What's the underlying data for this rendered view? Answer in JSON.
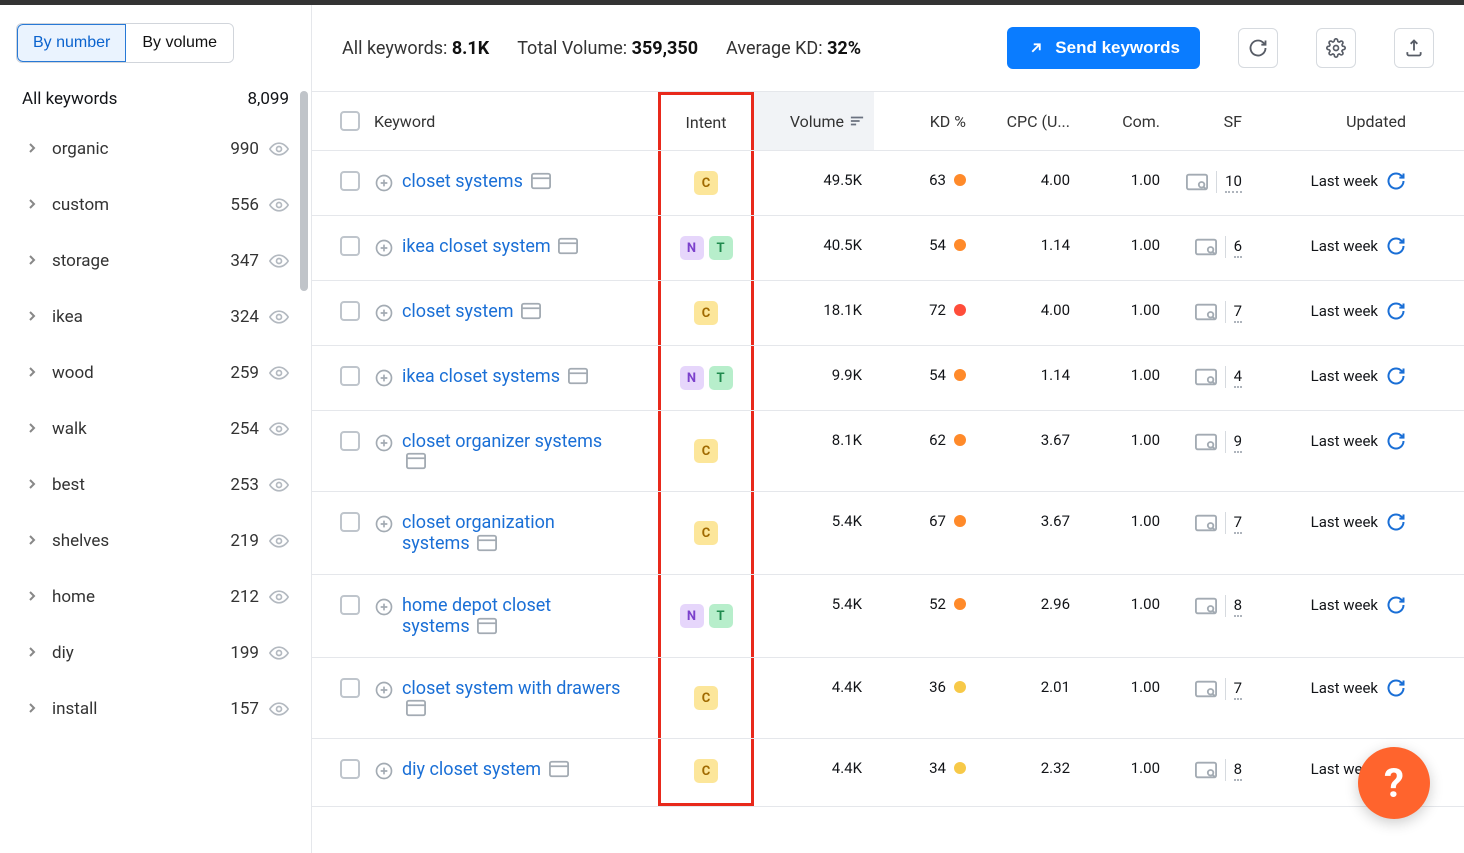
{
  "sidebar": {
    "toggle": {
      "by_number": "By number",
      "by_volume": "By volume"
    },
    "all_label": "All keywords",
    "all_count": "8,099",
    "items": [
      {
        "label": "organic",
        "count": "990"
      },
      {
        "label": "custom",
        "count": "556"
      },
      {
        "label": "storage",
        "count": "347"
      },
      {
        "label": "ikea",
        "count": "324"
      },
      {
        "label": "wood",
        "count": "259"
      },
      {
        "label": "walk",
        "count": "254"
      },
      {
        "label": "best",
        "count": "253"
      },
      {
        "label": "shelves",
        "count": "219"
      },
      {
        "label": "home",
        "count": "212"
      },
      {
        "label": "diy",
        "count": "199"
      },
      {
        "label": "install",
        "count": "157"
      }
    ]
  },
  "stats": {
    "all_kw_label": "All keywords: ",
    "all_kw_val": "8.1K",
    "vol_label": "Total Volume: ",
    "vol_val": "359,350",
    "kd_label": "Average KD: ",
    "kd_val": "32%"
  },
  "actions": {
    "send": "Send keywords"
  },
  "columns": {
    "keyword": "Keyword",
    "intent": "Intent",
    "volume": "Volume",
    "kd": "KD %",
    "cpc": "CPC (U...",
    "com": "Com.",
    "sf": "SF",
    "updated": "Updated"
  },
  "intent_colors": {
    "C": {
      "bg": "#fce69a",
      "fg": "#a06a00"
    },
    "N": {
      "bg": "#e6d6fb",
      "fg": "#7b40cc"
    },
    "T": {
      "bg": "#b7eecb",
      "fg": "#1f8a4d"
    }
  },
  "kd_color_scale": {
    "low": "#f7c948",
    "mid": "#ff8a2a",
    "high": "#ff4d3a"
  },
  "rows": [
    {
      "keyword": "closet systems",
      "intents": [
        "C"
      ],
      "volume": "49.5K",
      "kd": "63",
      "kd_color": "#ff8a2a",
      "cpc": "4.00",
      "com": "1.00",
      "sf": "10",
      "updated": "Last week"
    },
    {
      "keyword": "ikea closet system",
      "intents": [
        "N",
        "T"
      ],
      "volume": "40.5K",
      "kd": "54",
      "kd_color": "#ff8a2a",
      "cpc": "1.14",
      "com": "1.00",
      "sf": "6",
      "updated": "Last week"
    },
    {
      "keyword": "closet system",
      "intents": [
        "C"
      ],
      "volume": "18.1K",
      "kd": "72",
      "kd_color": "#ff4d3a",
      "cpc": "4.00",
      "com": "1.00",
      "sf": "7",
      "updated": "Last week"
    },
    {
      "keyword": "ikea closet systems",
      "intents": [
        "N",
        "T"
      ],
      "volume": "9.9K",
      "kd": "54",
      "kd_color": "#ff8a2a",
      "cpc": "1.14",
      "com": "1.00",
      "sf": "4",
      "updated": "Last week"
    },
    {
      "keyword": "closet organizer systems",
      "intents": [
        "C"
      ],
      "volume": "8.1K",
      "kd": "62",
      "kd_color": "#ff8a2a",
      "cpc": "3.67",
      "com": "1.00",
      "sf": "9",
      "updated": "Last week"
    },
    {
      "keyword": "closet organization systems",
      "intents": [
        "C"
      ],
      "volume": "5.4K",
      "kd": "67",
      "kd_color": "#ff8a2a",
      "cpc": "3.67",
      "com": "1.00",
      "sf": "7",
      "updated": "Last week"
    },
    {
      "keyword": "home depot closet systems",
      "intents": [
        "N",
        "T"
      ],
      "volume": "5.4K",
      "kd": "52",
      "kd_color": "#ff8a2a",
      "cpc": "2.96",
      "com": "1.00",
      "sf": "8",
      "updated": "Last week"
    },
    {
      "keyword": "closet system with drawers",
      "intents": [
        "C"
      ],
      "volume": "4.4K",
      "kd": "36",
      "kd_color": "#f7c948",
      "cpc": "2.01",
      "com": "1.00",
      "sf": "7",
      "updated": "Last week"
    },
    {
      "keyword": "diy closet system",
      "intents": [
        "C"
      ],
      "volume": "4.4K",
      "kd": "34",
      "kd_color": "#f7c948",
      "cpc": "2.32",
      "com": "1.00",
      "sf": "8",
      "updated": "Last week"
    }
  ],
  "help": "?",
  "highlight_column": "intent",
  "highlight_color": "#e8291b"
}
